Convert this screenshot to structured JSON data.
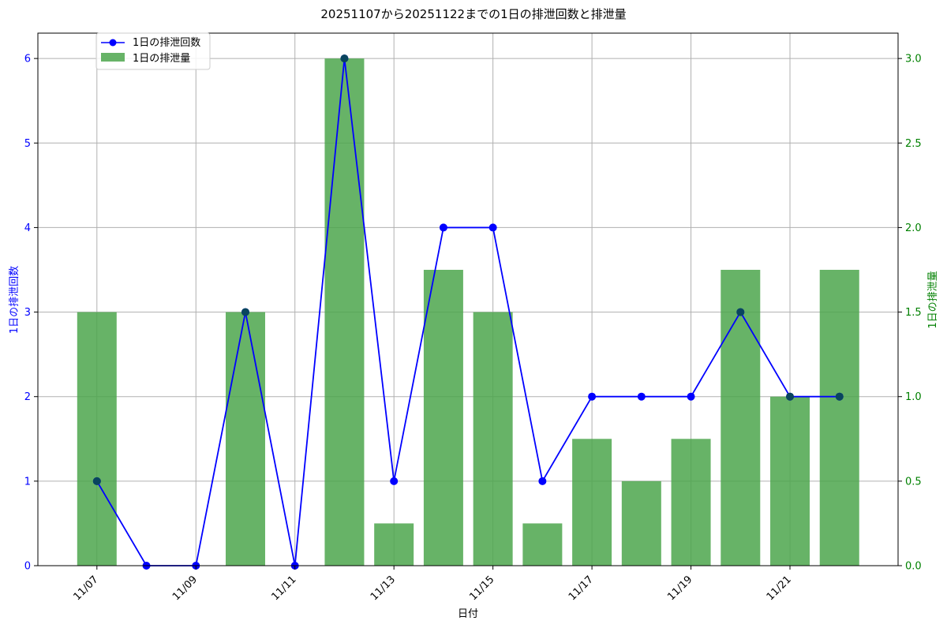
{
  "chart_data": {
    "type": "bar+line",
    "title": "20251107から20251122までの1日の排泄回数と排泄量",
    "xlabel": "日付",
    "ylabel_left": "1日の排泄回数",
    "ylabel_right": "1日の排泄量",
    "x": [
      "11/07",
      "11/08",
      "11/09",
      "11/10",
      "11/11",
      "11/12",
      "11/13",
      "11/14",
      "11/15",
      "11/16",
      "11/17",
      "11/18",
      "11/19",
      "11/20",
      "11/21",
      "11/22"
    ],
    "x_tick_labels": [
      "11/07",
      "11/09",
      "11/11",
      "11/13",
      "11/15",
      "11/17",
      "11/19",
      "11/21"
    ],
    "ylim_left": [
      0,
      6.3
    ],
    "yticks_left": [
      0,
      1,
      2,
      3,
      4,
      5,
      6
    ],
    "ylim_right": [
      0,
      3.15
    ],
    "yticks_right": [
      "0.0",
      "0.5",
      "1.0",
      "1.5",
      "2.0",
      "2.5",
      "3.0"
    ],
    "series": [
      {
        "name": "1日の排泄回数",
        "kind": "line",
        "axis": "left",
        "color": "#0000ff",
        "values": [
          1,
          0,
          0,
          3,
          0,
          6,
          1,
          4,
          4,
          1,
          2,
          2,
          2,
          3,
          2,
          2
        ]
      },
      {
        "name": "1日の排泄量",
        "kind": "bar",
        "axis": "right",
        "color": "#4ca64c",
        "values": [
          1.5,
          0,
          0,
          1.5,
          0,
          3.0,
          0.25,
          1.75,
          1.5,
          0.25,
          0.75,
          0.5,
          0.75,
          1.75,
          1.0,
          1.75
        ]
      }
    ],
    "grid": true,
    "legend_position": "upper-left",
    "left_axis_color": "#0000ff",
    "right_axis_color": "#008000"
  }
}
